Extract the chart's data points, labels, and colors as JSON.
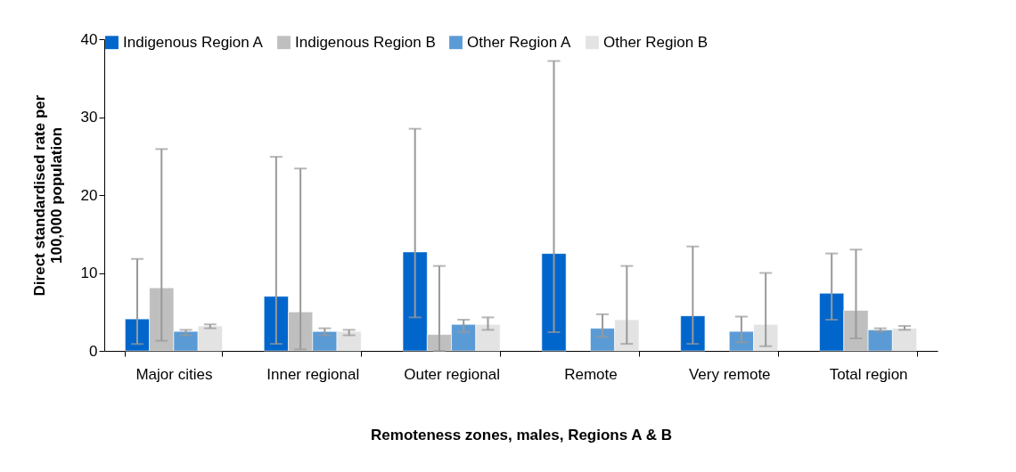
{
  "chart_data": {
    "type": "bar",
    "xlabel": "Remoteness zones, males, Regions A & B",
    "ylabel": "Direct standardised rate per 100,000 population",
    "categories": [
      "Major cities",
      "Inner regional",
      "Outer regional",
      "Remote",
      "Very remote",
      "Total region"
    ],
    "series": [
      {
        "name": "Indigenous Region A",
        "color": "#0066cc",
        "values": [
          4.1,
          7.0,
          12.7,
          12.5,
          4.5,
          7.4
        ],
        "errors": [
          [
            0.9,
            11.8
          ],
          [
            0.9,
            24.9
          ],
          [
            4.3,
            28.5
          ],
          [
            2.4,
            37.2
          ],
          [
            0.9,
            13.4
          ],
          [
            4.0,
            12.5
          ]
        ]
      },
      {
        "name": "Indigenous Region B",
        "color": "#bfbfbf",
        "values": [
          8.1,
          5.0,
          2.1,
          null,
          null,
          5.2
        ],
        "errors": [
          [
            1.3,
            25.9
          ],
          [
            0.2,
            23.4
          ],
          [
            0,
            10.9
          ],
          null,
          null,
          [
            1.6,
            13.0
          ]
        ]
      },
      {
        "name": "Other Region A",
        "color": "#5b9bd5",
        "values": [
          2.5,
          2.5,
          3.4,
          2.9,
          2.5,
          2.7
        ],
        "errors": [
          [
            2.0,
            2.7
          ],
          [
            2.0,
            2.9
          ],
          [
            2.4,
            4.0
          ],
          [
            1.8,
            4.7
          ],
          [
            1.1,
            4.4
          ],
          [
            2.5,
            2.9
          ]
        ]
      },
      {
        "name": "Other Region B",
        "color": "#e3e3e3",
        "values": [
          3.2,
          2.5,
          3.4,
          4.0,
          3.4,
          2.9
        ],
        "errors": [
          [
            2.9,
            3.4
          ],
          [
            2.0,
            2.7
          ],
          [
            2.7,
            4.3
          ],
          [
            0.9,
            10.9
          ],
          [
            0.6,
            10.0
          ],
          [
            2.7,
            3.2
          ]
        ]
      }
    ],
    "ylim": [
      0,
      40
    ],
    "yticks": [
      0,
      10,
      20,
      30,
      40
    ],
    "grid": false,
    "legend": "top"
  }
}
